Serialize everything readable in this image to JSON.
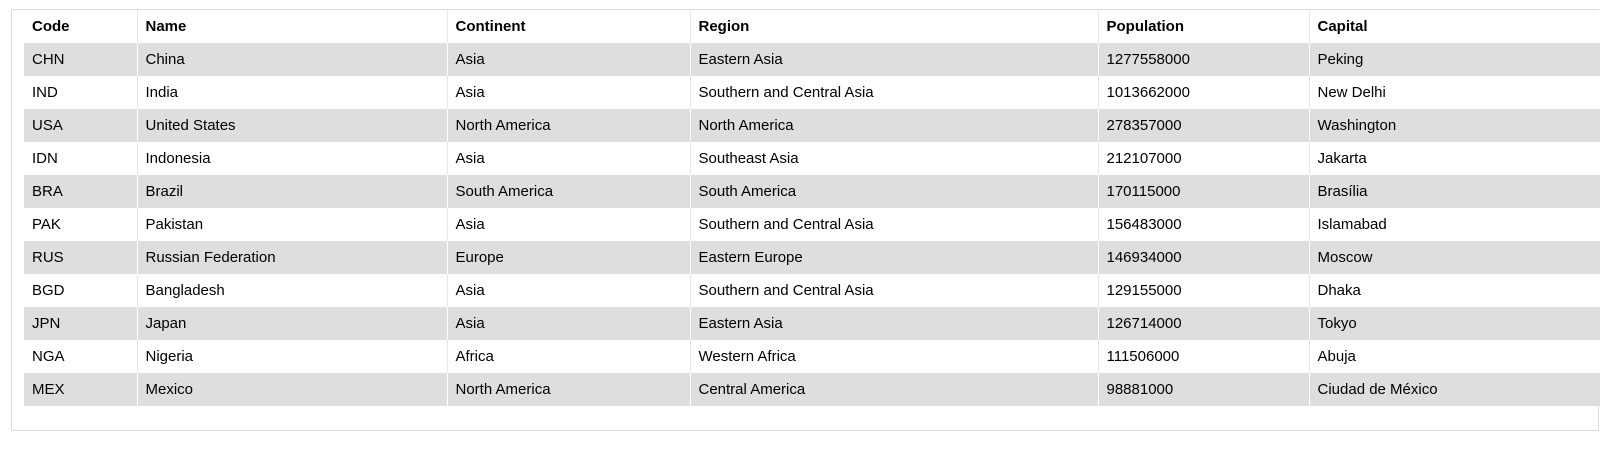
{
  "table": {
    "columns": [
      "Code",
      "Name",
      "Continent",
      "Region",
      "Population",
      "Capital"
    ],
    "rows": [
      [
        "CHN",
        "China",
        "Asia",
        "Eastern Asia",
        "1277558000",
        "Peking"
      ],
      [
        "IND",
        "India",
        "Asia",
        "Southern and Central Asia",
        "1013662000",
        "New Delhi"
      ],
      [
        "USA",
        "United States",
        "North America",
        "North America",
        "278357000",
        "Washington"
      ],
      [
        "IDN",
        "Indonesia",
        "Asia",
        "Southeast Asia",
        "212107000",
        "Jakarta"
      ],
      [
        "BRA",
        "Brazil",
        "South America",
        "South America",
        "170115000",
        "Brasília"
      ],
      [
        "PAK",
        "Pakistan",
        "Asia",
        "Southern and Central Asia",
        "156483000",
        "Islamabad"
      ],
      [
        "RUS",
        "Russian Federation",
        "Europe",
        "Eastern Europe",
        "146934000",
        "Moscow"
      ],
      [
        "BGD",
        "Bangladesh",
        "Asia",
        "Southern and Central Asia",
        "129155000",
        "Dhaka"
      ],
      [
        "JPN",
        "Japan",
        "Asia",
        "Eastern Asia",
        "126714000",
        "Tokyo"
      ],
      [
        "NGA",
        "Nigeria",
        "Africa",
        "Western Africa",
        "111506000",
        "Abuja"
      ],
      [
        "MEX",
        "Mexico",
        "North America",
        "Central America",
        "98881000",
        "Ciudad de México"
      ]
    ]
  },
  "colors": {
    "stripe": "#dedede",
    "background": "#ffffff",
    "border": "#dcdcdc"
  }
}
